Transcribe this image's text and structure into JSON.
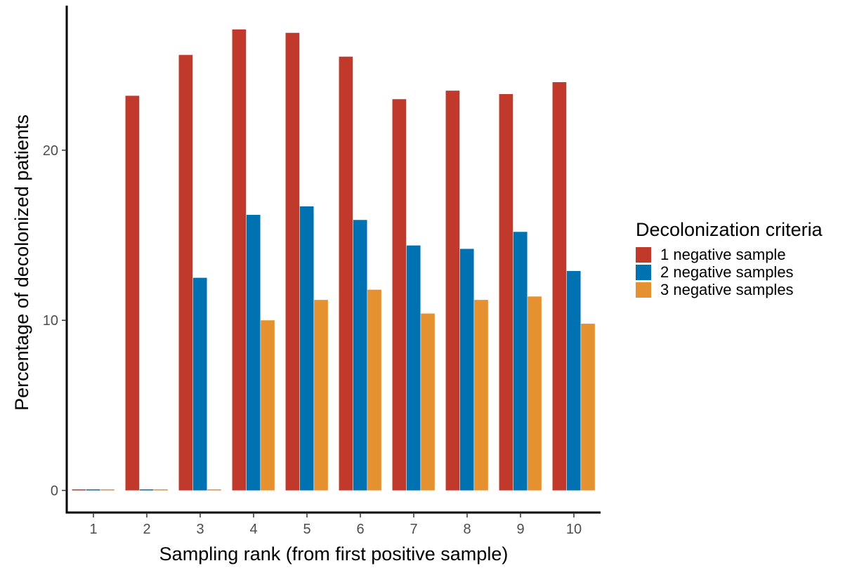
{
  "chart_data": {
    "type": "bar",
    "title": "",
    "xlabel": "Sampling rank (from first positive sample)",
    "ylabel": "Percentage of decolonized patients",
    "categories": [
      "1",
      "2",
      "3",
      "4",
      "5",
      "6",
      "7",
      "8",
      "9",
      "10"
    ],
    "yticks": [
      "0",
      "10",
      "20"
    ],
    "ylim": [
      -1.3,
      28.5
    ],
    "grid": false,
    "legend": {
      "title": "Decolonization criteria",
      "placement": "right"
    },
    "series": [
      {
        "name": "1 negative sample",
        "color": "#C0392B",
        "values": [
          0,
          23.2,
          25.6,
          27.1,
          26.9,
          25.5,
          23.0,
          23.5,
          23.3,
          24.0
        ]
      },
      {
        "name": "2 negative samples",
        "color": "#0072B2",
        "values": [
          0,
          0,
          12.5,
          16.2,
          16.7,
          15.9,
          14.4,
          14.2,
          15.2,
          12.9
        ]
      },
      {
        "name": "3 negative samples",
        "color": "#E69130",
        "values": [
          0,
          0,
          0,
          10.0,
          11.2,
          11.8,
          10.4,
          11.2,
          11.4,
          9.8
        ]
      }
    ]
  }
}
